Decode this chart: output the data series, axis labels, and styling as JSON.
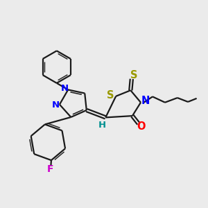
{
  "background_color": "#ebebeb",
  "bond_color": "#1a1a1a",
  "N_color": "#0000ff",
  "O_color": "#ff0000",
  "S_color": "#999900",
  "F_color": "#cc00cc",
  "H_color": "#009090",
  "figsize": [
    3.0,
    3.0
  ],
  "dpi": 100,
  "xlim": [
    0,
    10
  ],
  "ylim": [
    0,
    10
  ]
}
